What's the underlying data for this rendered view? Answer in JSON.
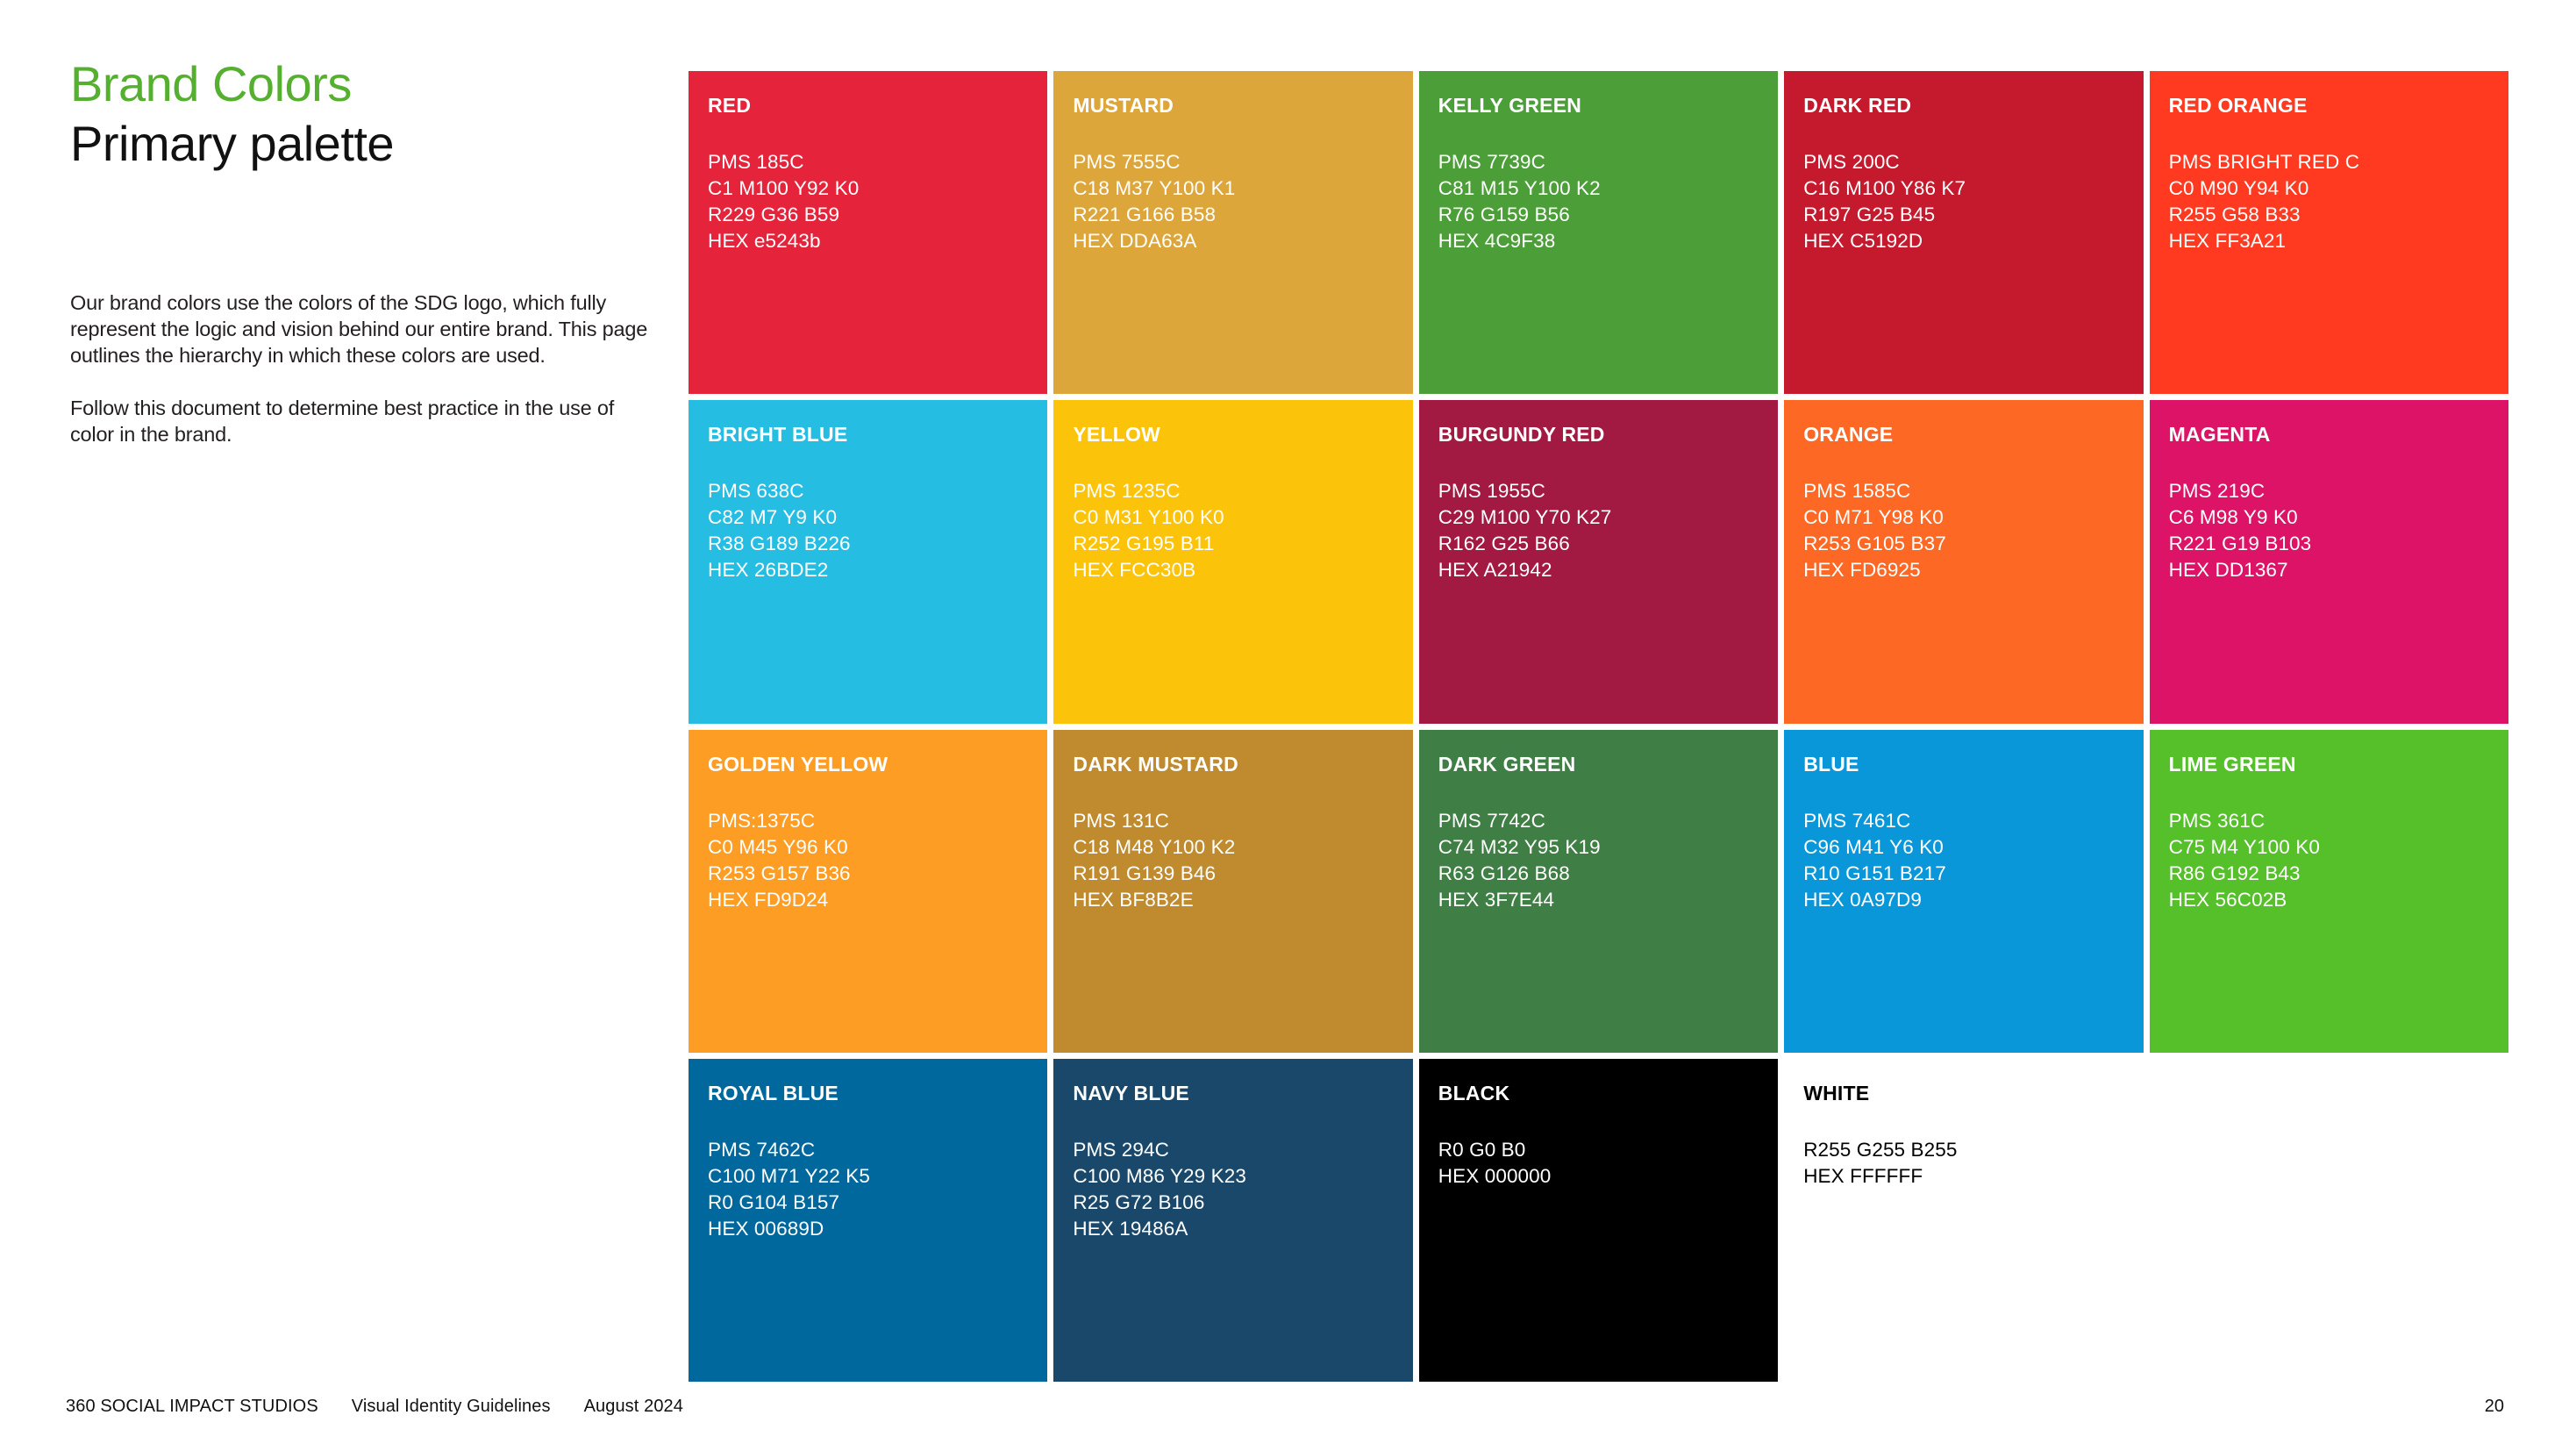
{
  "page": {
    "title_green": "Brand Colors",
    "title_black": "Primary palette",
    "heading_color": "#56B02F",
    "intro_p1": "Our brand colors use the colors of the SDG logo, which fully represent the logic and vision behind our entire brand. This page outlines the hierarchy in which these colors are used.",
    "intro_p2": "Follow this document to determine best practice in the use of color in the brand."
  },
  "palette": {
    "swatches": [
      {
        "name": "RED",
        "hex": "#E5243B",
        "text_color": "#FFFFFF",
        "lines": [
          "PMS 185C",
          "C1 M100 Y92 K0",
          "R229 G36 B59",
          "HEX e5243b"
        ]
      },
      {
        "name": "MUSTARD",
        "hex": "#DDA63A",
        "text_color": "#FFFFFF",
        "lines": [
          "PMS 7555C",
          "C18 M37 Y100 K1",
          "R221 G166 B58",
          "HEX DDA63A"
        ]
      },
      {
        "name": "KELLY GREEN",
        "hex": "#4C9F38",
        "text_color": "#FFFFFF",
        "lines": [
          "PMS 7739C",
          "C81 M15 Y100 K2",
          "R76 G159 B56",
          "HEX 4C9F38"
        ]
      },
      {
        "name": "DARK RED",
        "hex": "#C5192D",
        "text_color": "#FFFFFF",
        "lines": [
          "PMS 200C",
          "C16 M100 Y86 K7",
          "R197 G25 B45",
          "HEX C5192D"
        ]
      },
      {
        "name": "RED ORANGE",
        "hex": "#FF3A21",
        "text_color": "#FFFFFF",
        "lines": [
          "PMS BRIGHT RED C",
          "C0 M90 Y94 K0",
          "R255 G58 B33",
          "HEX FF3A21"
        ]
      },
      {
        "name": "BRIGHT BLUE",
        "hex": "#26BDE2",
        "text_color": "#FFFFFF",
        "lines": [
          "PMS 638C",
          "C82 M7 Y9 K0",
          "R38 G189 B226",
          "HEX 26BDE2"
        ]
      },
      {
        "name": "YELLOW",
        "hex": "#FCC30B",
        "text_color": "#FFFFFF",
        "lines": [
          "PMS 1235C",
          "C0 M31 Y100 K0",
          "R252 G195 B11",
          "HEX FCC30B"
        ]
      },
      {
        "name": "BURGUNDY RED",
        "hex": "#A21942",
        "text_color": "#FFFFFF",
        "lines": [
          "PMS 1955C",
          "C29 M100 Y70 K27",
          "R162 G25 B66",
          "HEX A21942"
        ]
      },
      {
        "name": "ORANGE",
        "hex": "#FD6925",
        "text_color": "#FFFFFF",
        "lines": [
          "PMS 1585C",
          "C0 M71 Y98 K0",
          "R253 G105 B37",
          "HEX FD6925"
        ]
      },
      {
        "name": "MAGENTA",
        "hex": "#DD1367",
        "text_color": "#FFFFFF",
        "lines": [
          "PMS 219C",
          "C6 M98 Y9 K0",
          "R221 G19 B103",
          "HEX DD1367"
        ]
      },
      {
        "name": "GOLDEN YELLOW",
        "hex": "#FD9D24",
        "text_color": "#FFFFFF",
        "lines": [
          "PMS:1375C",
          "C0 M45 Y96 K0",
          "R253 G157 B36",
          "HEX FD9D24"
        ]
      },
      {
        "name": "DARK MUSTARD",
        "hex": "#BF8B2E",
        "text_color": "#FFFFFF",
        "lines": [
          "PMS 131C",
          "C18 M48 Y100 K2",
          "R191 G139 B46",
          "HEX BF8B2E"
        ]
      },
      {
        "name": "DARK GREEN",
        "hex": "#3F7E44",
        "text_color": "#FFFFFF",
        "lines": [
          "PMS 7742C",
          "C74 M32 Y95 K19",
          "R63 G126 B68",
          "HEX 3F7E44"
        ]
      },
      {
        "name": "BLUE",
        "hex": "#0A97D9",
        "text_color": "#FFFFFF",
        "lines": [
          "PMS 7461C",
          "C96 M41 Y6 K0",
          "R10 G151 B217",
          "HEX 0A97D9"
        ]
      },
      {
        "name": "LIME GREEN",
        "hex": "#56C02B",
        "text_color": "#FFFFFF",
        "lines": [
          "PMS 361C",
          "C75 M4 Y100 K0",
          "R86 G192 B43",
          "HEX 56C02B"
        ]
      },
      {
        "name": "ROYAL BLUE",
        "hex": "#00689D",
        "text_color": "#FFFFFF",
        "lines": [
          "PMS 7462C",
          "C100 M71 Y22 K5",
          "R0 G104 B157",
          "HEX 00689D"
        ]
      },
      {
        "name": "NAVY BLUE",
        "hex": "#19486A",
        "text_color": "#FFFFFF",
        "lines": [
          "PMS 294C",
          "C100 M86 Y29 K23",
          "R25 G72 B106",
          "HEX 19486A"
        ]
      },
      {
        "name": "BLACK",
        "hex": "#000000",
        "text_color": "#FFFFFF",
        "lines": [
          "R0 G0 B0",
          "HEX 000000"
        ]
      },
      {
        "name": "WHITE",
        "hex": "#FFFFFF",
        "text_color": "#000000",
        "lines": [
          "R255 G255 B255",
          "HEX FFFFFF"
        ]
      }
    ]
  },
  "footer": {
    "brand": "360 SOCIAL IMPACT STUDIOS",
    "document": "Visual Identity Guidelines",
    "date": "August 2024",
    "page_number": "20"
  }
}
